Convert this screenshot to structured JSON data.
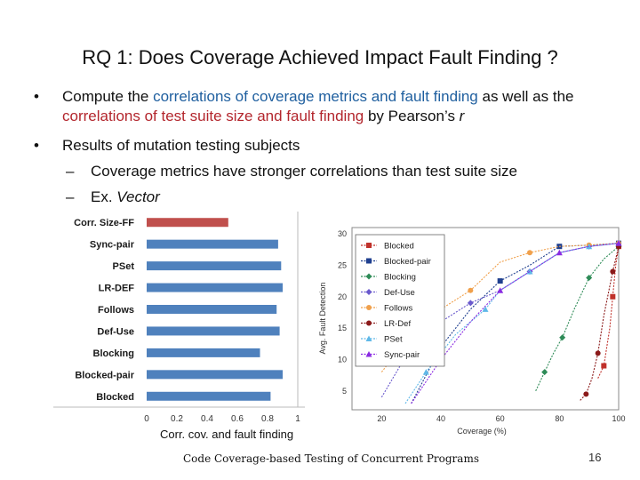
{
  "slide": {
    "title": "RQ 1: Does Coverage Achieved Impact Fault Finding ?",
    "footer": "Code Coverage-based Testing of Concurrent Programs",
    "page_number": "16"
  },
  "bullets": {
    "b1_pre": "Compute the ",
    "b1_hl1": "correlations of coverage metrics and fault finding",
    "b1_mid": " as well as the ",
    "b1_hl2": "correlations of test suite size and fault finding",
    "b1_post": " by Pearson’s ",
    "b1_r": "r",
    "b2": "Results of mutation testing subjects",
    "sub1": "Coverage metrics have stronger correlations than test suite size",
    "sub2_pre": "Ex. ",
    "sub2_it": "Vector",
    "bullet_char": "•",
    "dash_char": "–"
  },
  "chart_data": [
    {
      "type": "bar",
      "orientation": "horizontal",
      "categories": [
        "Corr. Size-FF",
        "Sync-pair",
        "PSet",
        "LR-DEF",
        "Follows",
        "Def-Use",
        "Blocking",
        "Blocked-pair",
        "Blocked"
      ],
      "values": [
        0.54,
        0.87,
        0.89,
        0.9,
        0.86,
        0.88,
        0.75,
        0.9,
        0.82
      ],
      "colors": [
        "#c0504d",
        "#4f81bd",
        "#4f81bd",
        "#4f81bd",
        "#4f81bd",
        "#4f81bd",
        "#4f81bd",
        "#4f81bd",
        "#4f81bd"
      ],
      "xlabel": "Corr. cov. and fault finding",
      "xlim": [
        0,
        1
      ],
      "xticks": [
        "0",
        "0.2",
        "0.4",
        "0.6",
        "0.8",
        "1"
      ]
    },
    {
      "type": "line",
      "xlabel": "Coverage (%)",
      "ylabel": "Avg. Fault Detection",
      "xticks": [
        "20",
        "40",
        "60",
        "80",
        "100"
      ],
      "yticks": [
        "5",
        "10",
        "15",
        "20",
        "25",
        "30"
      ],
      "xlim": [
        10,
        100
      ],
      "ylim": [
        2,
        31
      ],
      "legend_position": "top-left",
      "series": [
        {
          "name": "Blocked",
          "color": "#c0312b",
          "marker": "square",
          "x": [
            93,
            95,
            97,
            98,
            99,
            100
          ],
          "y": [
            7,
            9,
            15,
            20,
            25,
            28
          ]
        },
        {
          "name": "Blocked-pair",
          "color": "#1f3f8f",
          "marker": "square",
          "x": [
            30,
            40,
            50,
            60,
            70,
            80,
            90,
            100
          ],
          "y": [
            3,
            12,
            18,
            22.5,
            25,
            28,
            28.2,
            28.5
          ]
        },
        {
          "name": "Blocking",
          "color": "#2e8b57",
          "marker": "diamond",
          "x": [
            72,
            75,
            78,
            81,
            85,
            90,
            95,
            100
          ],
          "y": [
            5,
            8,
            11,
            13.5,
            18,
            23,
            26,
            28
          ]
        },
        {
          "name": "Def-Use",
          "color": "#6a5acd",
          "marker": "diamond",
          "x": [
            20,
            30,
            40,
            50,
            60,
            70,
            80,
            90,
            100
          ],
          "y": [
            4,
            12,
            16,
            19,
            21,
            24,
            27,
            28,
            28.5
          ]
        },
        {
          "name": "Follows",
          "color": "#f0a04b",
          "marker": "circle",
          "x": [
            20,
            30,
            40,
            50,
            60,
            70,
            80,
            90,
            100
          ],
          "y": [
            8,
            14,
            18,
            21,
            25.5,
            27,
            28,
            28.2,
            28.5
          ]
        },
        {
          "name": "LR-Def",
          "color": "#8b1a1a",
          "marker": "circle",
          "x": [
            87,
            89,
            91,
            93,
            95,
            98,
            100
          ],
          "y": [
            3.5,
            4.5,
            7,
            11,
            17,
            24,
            28
          ]
        },
        {
          "name": "PSet",
          "color": "#5fb8e8",
          "marker": "triangle",
          "x": [
            28,
            35,
            45,
            55,
            60,
            70,
            80,
            90,
            100
          ],
          "y": [
            3,
            8,
            14,
            18,
            21,
            24,
            27,
            28,
            28.5
          ]
        },
        {
          "name": "Sync-pair",
          "color": "#8a2be2",
          "marker": "triangle",
          "x": [
            30,
            40,
            50,
            60,
            70,
            80,
            90,
            100
          ],
          "y": [
            3,
            10,
            16,
            21,
            24,
            27,
            28,
            28.5
          ]
        }
      ]
    }
  ]
}
